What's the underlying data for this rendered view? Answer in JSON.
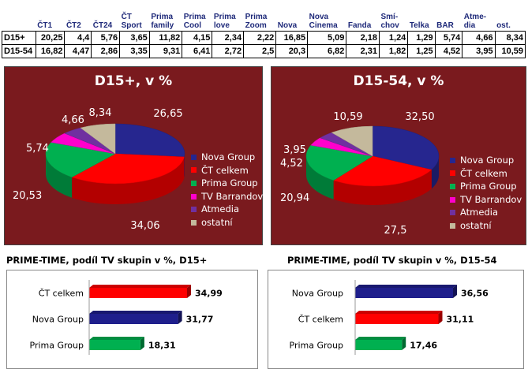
{
  "table": {
    "headers": [
      "ČT1",
      "ČT2",
      "ČT24",
      "ČT Sport",
      "Prima family",
      "Prima Cool",
      "Prima love",
      "Prima Zoom",
      "Nova",
      "Nova Cinema",
      "Fanda",
      "Smí-chov",
      "Telka",
      "BAR",
      "Atme-dia",
      "ost."
    ],
    "rows": [
      {
        "label": "D15+",
        "values": [
          "20,25",
          "4,4",
          "5,76",
          "3,65",
          "11,82",
          "4,15",
          "2,34",
          "2,22",
          "16,85",
          "5,09",
          "2,18",
          "1,24",
          "1,29",
          "5,74",
          "4,66",
          "8,34"
        ]
      },
      {
        "label": "D15-54",
        "values": [
          "16,82",
          "4,47",
          "2,86",
          "3,35",
          "9,31",
          "6,41",
          "2,72",
          "2,5",
          "20,3",
          "6,82",
          "2,31",
          "1,82",
          "1,25",
          "4,52",
          "3,95",
          "10,59"
        ]
      }
    ]
  },
  "chart_data": [
    {
      "type": "pie",
      "title": "D15+, v %",
      "labels": [
        "Nova Group",
        "ČT celkem",
        "Prima Group",
        "TV Barrandov",
        "Atmedia",
        "ostatní"
      ],
      "values": [
        26.65,
        34.06,
        20.53,
        5.74,
        4.66,
        8.34
      ],
      "value_labels": [
        "26,65",
        "34,06",
        "20,53",
        "5,74",
        "4,66",
        "8,34"
      ],
      "legend": "right"
    },
    {
      "type": "pie",
      "title": "D15-54, v %",
      "labels": [
        "Nova Group",
        "ČT celkem",
        "Prima Group",
        "TV Barrandov",
        "Atmedia",
        "ostatní"
      ],
      "values": [
        32.5,
        27.5,
        20.94,
        4.52,
        3.95,
        10.59
      ],
      "value_labels": [
        "32,50",
        "27,5",
        "20,94",
        "4,52",
        "3,95",
        "10,59"
      ],
      "legend": "right"
    },
    {
      "type": "bar",
      "orientation": "horizontal",
      "title": "PRIME-TIME, podíl TV skupin v %, D15+",
      "categories": [
        "ČT celkem",
        "Nova Group",
        "Prima Group"
      ],
      "values": [
        34.99,
        31.77,
        18.31
      ],
      "value_labels": [
        "34,99",
        "31,77",
        "18,31"
      ],
      "colors": [
        "#ff0000",
        "#1f1f8c",
        "#00b050"
      ]
    },
    {
      "type": "bar",
      "orientation": "horizontal",
      "title": "PRIME-TIME, podíl TV skupin v %, D15-54",
      "categories": [
        "Nova Group",
        "ČT celkem",
        "Prima Group"
      ],
      "values": [
        36.56,
        31.11,
        17.46
      ],
      "value_labels": [
        "36,56",
        "31,11",
        "17,46"
      ],
      "colors": [
        "#1f1f8c",
        "#ff0000",
        "#00b050"
      ]
    }
  ],
  "colors": {
    "Nova Group": "#26268f",
    "ČT celkem": "#ff0000",
    "Prima Group": "#00b050",
    "TV Barrandov": "#ff00cc",
    "Atmedia": "#7030a0",
    "ostatní": "#c4b99c"
  }
}
